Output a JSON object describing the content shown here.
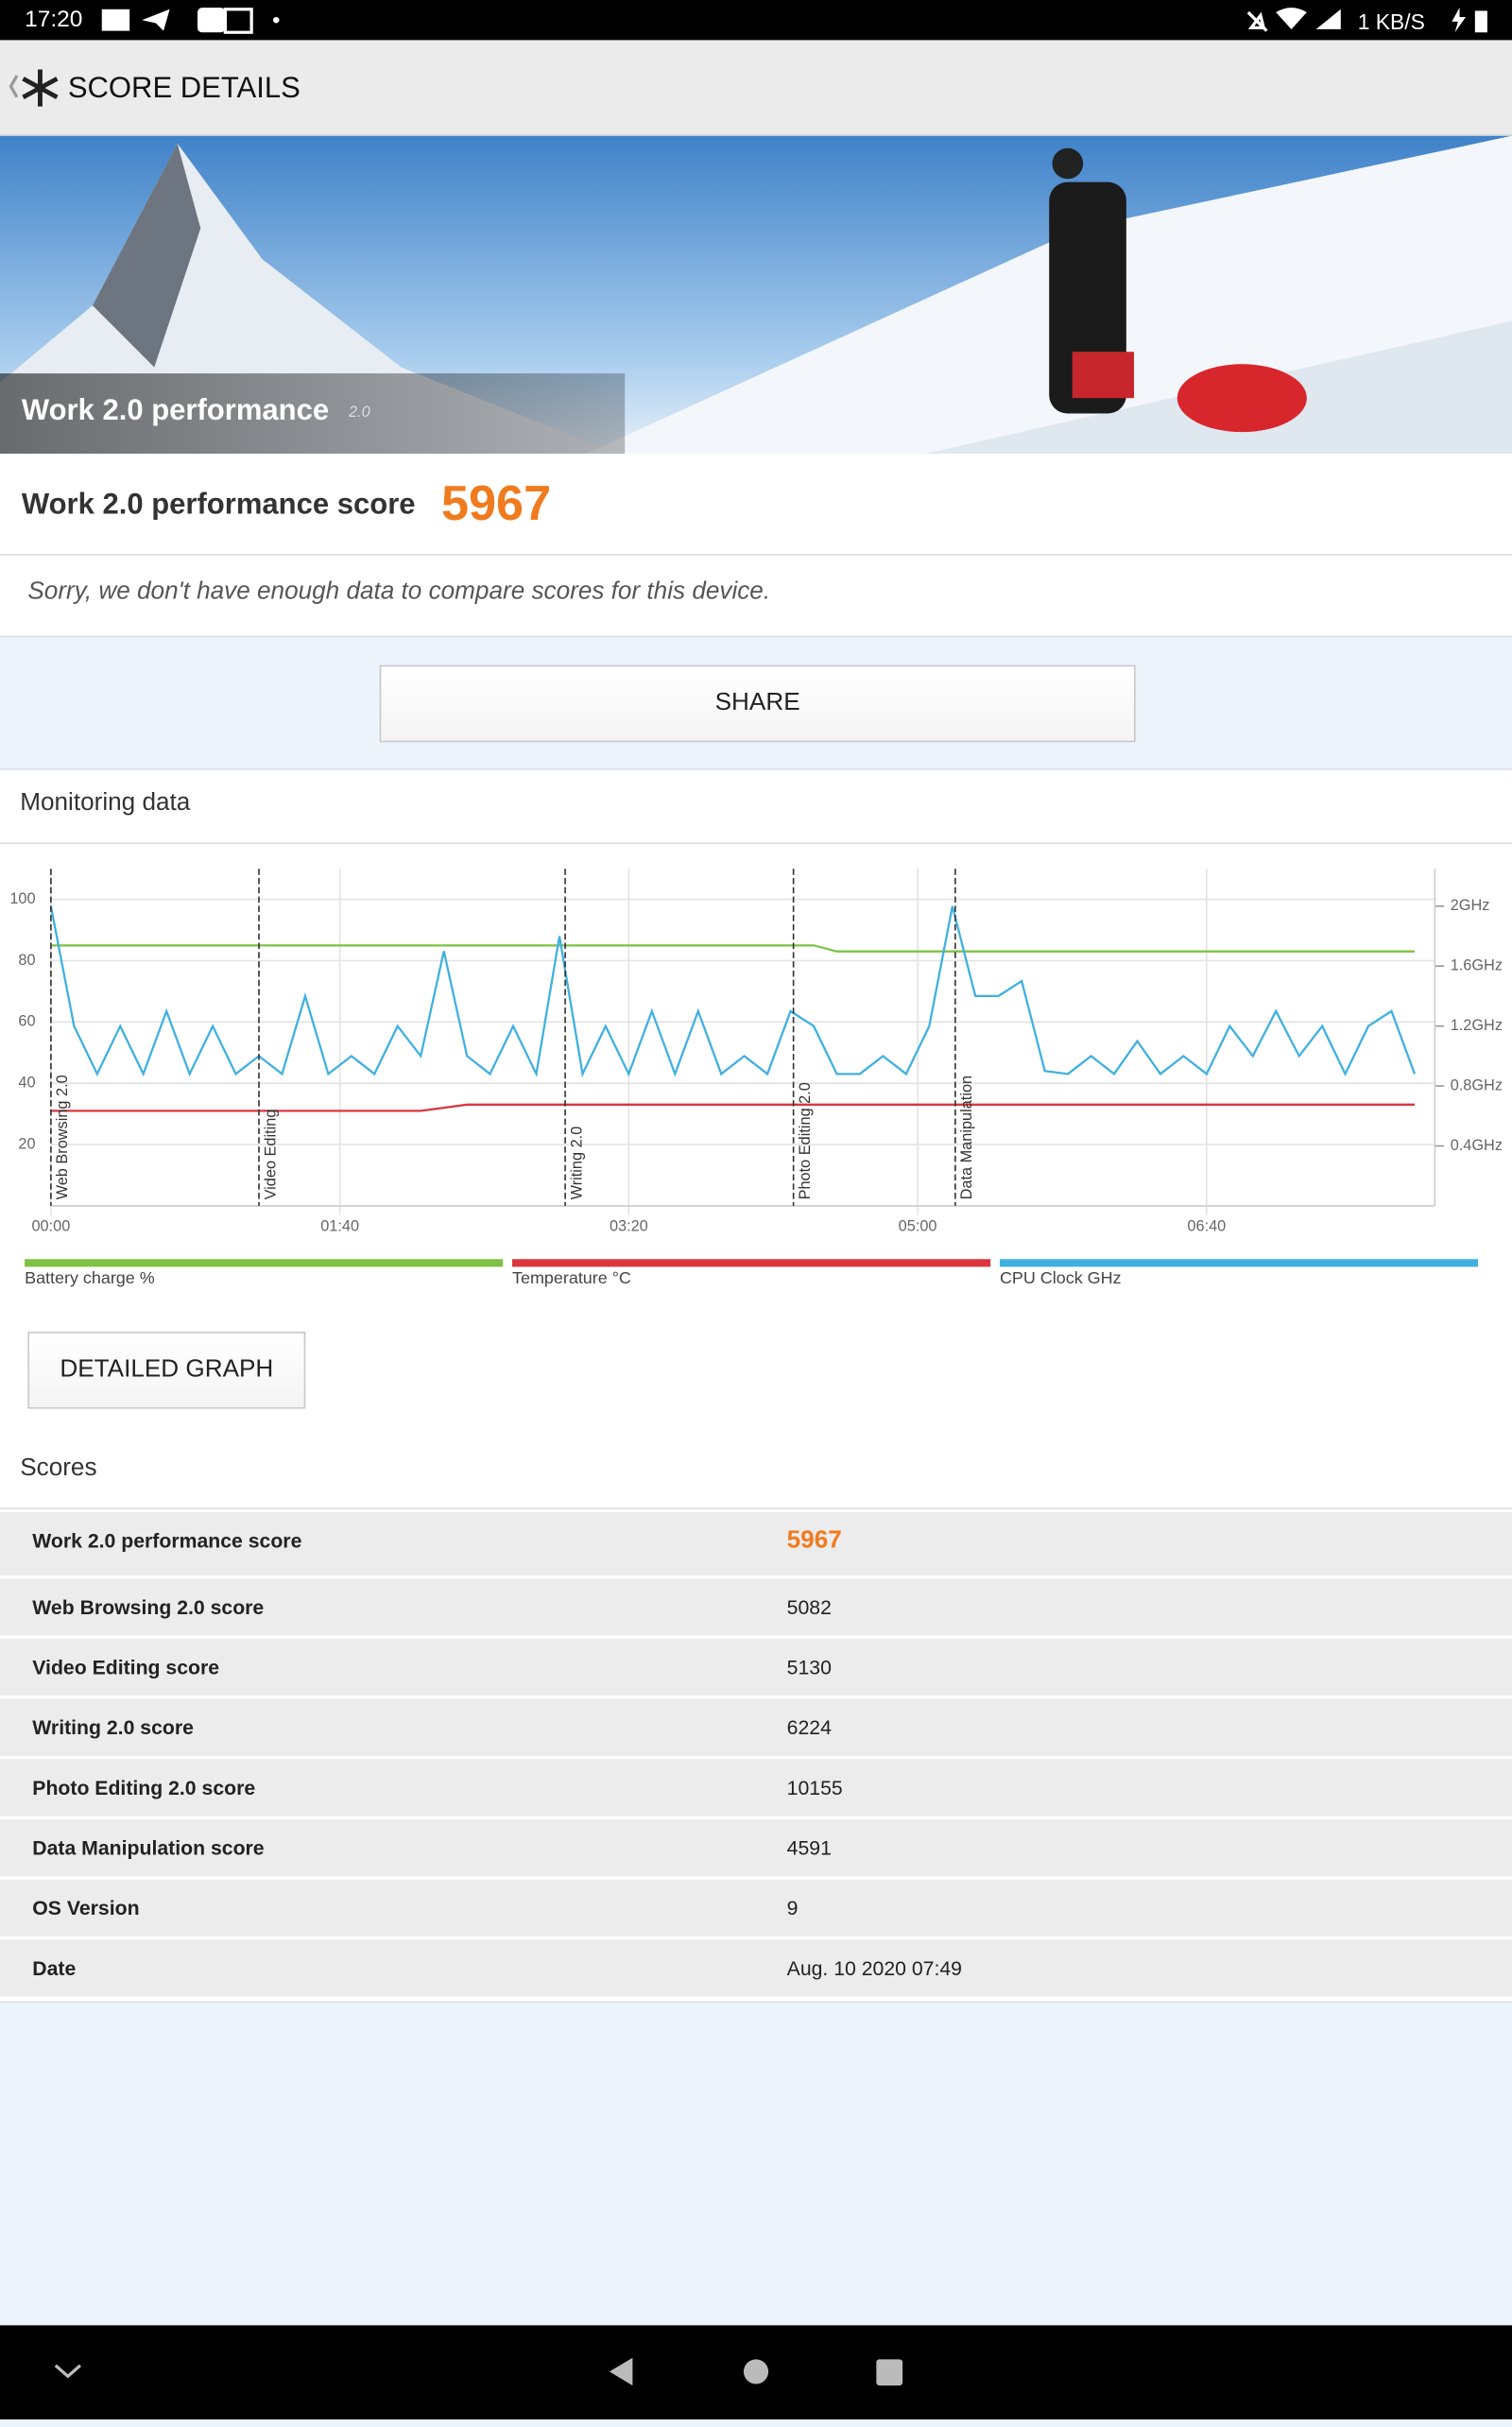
{
  "status_bar": {
    "time": "17:20",
    "speed": "1 KB/S"
  },
  "header": {
    "title": "SCORE DETAILS"
  },
  "banner": {
    "title": "Work 2.0 performance",
    "version": "2.0"
  },
  "score": {
    "label": "Work 2.0 performance score",
    "value": 5967,
    "note": "Sorry, we don't have enough data to compare scores for this device."
  },
  "share_button": "SHARE",
  "monitoring": {
    "title": "Monitoring data",
    "button": "DETAILED GRAPH"
  },
  "chart_data": {
    "type": "line",
    "x": [
      0,
      8,
      16,
      24,
      32,
      40,
      48,
      56,
      64,
      72,
      80,
      88,
      96,
      104,
      112,
      120,
      128,
      136,
      144,
      152,
      160,
      168,
      176,
      184,
      192,
      200,
      208,
      216,
      224,
      232,
      240,
      248,
      256,
      264,
      272,
      280,
      288,
      296,
      304,
      312,
      320,
      328,
      336,
      344,
      352,
      360,
      368,
      376,
      384,
      392,
      400,
      408,
      416,
      424,
      432,
      440,
      448,
      456,
      464,
      472
    ],
    "xlim": [
      0,
      479
    ],
    "xticks": [
      {
        "value": 0,
        "label": "00:00"
      },
      {
        "value": 100,
        "label": "01:40"
      },
      {
        "value": 200,
        "label": "03:20"
      },
      {
        "value": 300,
        "label": "05:00"
      },
      {
        "value": 400,
        "label": "06:40"
      }
    ],
    "ylim": [
      0,
      110
    ],
    "yticks": [
      20,
      40,
      60,
      80,
      100
    ],
    "y2lim": [
      0,
      2.25
    ],
    "y2ticks": [
      {
        "value": 0.4,
        "label": "0.4GHz"
      },
      {
        "value": 0.8,
        "label": "0.8GHz"
      },
      {
        "value": 1.2,
        "label": "1.2GHz"
      },
      {
        "value": 1.6,
        "label": "1.6GHz"
      },
      {
        "value": 2,
        "label": "2GHz"
      }
    ],
    "grid": true,
    "markers": [
      {
        "x": 0,
        "label": "Web Browsing 2.0"
      },
      {
        "x": 72,
        "label": "Video Editing"
      },
      {
        "x": 178,
        "label": "Writing 2.0"
      },
      {
        "x": 257,
        "label": "Photo Editing 2.0"
      },
      {
        "x": 313,
        "label": "Data Manipulation"
      }
    ],
    "series": [
      {
        "name": "Battery charge %",
        "color": "#7dc242",
        "values": [
          85,
          85,
          85,
          85,
          85,
          85,
          85,
          85,
          85,
          85,
          85,
          85,
          85,
          85,
          85,
          85,
          85,
          85,
          85,
          85,
          85,
          85,
          85,
          85,
          85,
          85,
          85,
          85,
          85,
          85,
          85,
          85,
          85,
          85,
          83,
          83,
          83,
          83,
          83,
          83,
          83,
          83,
          83,
          83,
          83,
          83,
          83,
          83,
          83,
          83,
          83,
          83,
          83,
          83,
          83,
          83,
          83,
          83,
          83,
          83
        ]
      },
      {
        "name": "Temperature °C",
        "color": "#d9363e",
        "values": [
          31,
          31,
          31,
          31,
          31,
          31,
          31,
          31,
          31,
          31,
          31,
          31,
          31,
          31,
          31,
          31,
          31,
          32,
          33,
          33,
          33,
          33,
          33,
          33,
          33,
          33,
          33,
          33,
          33,
          33,
          33,
          33,
          33,
          33,
          33,
          33,
          33,
          33,
          33,
          33,
          33,
          33,
          33,
          33,
          33,
          33,
          33,
          33,
          33,
          33,
          33,
          33,
          33,
          33,
          33,
          33,
          33,
          33,
          33,
          33
        ]
      },
      {
        "name": "CPU Clock GHz",
        "color": "#3fb0e0",
        "axis": "y2",
        "values": [
          2.0,
          1.2,
          0.88,
          1.2,
          0.88,
          1.3,
          0.88,
          1.2,
          0.88,
          1.0,
          0.88,
          1.4,
          0.88,
          1.0,
          0.88,
          1.2,
          1.0,
          1.7,
          1.0,
          0.88,
          1.2,
          0.88,
          1.8,
          0.88,
          1.2,
          0.88,
          1.3,
          0.88,
          1.3,
          0.88,
          1.0,
          0.88,
          1.3,
          1.2,
          0.88,
          0.88,
          1.0,
          0.88,
          1.2,
          2.0,
          1.4,
          1.4,
          1.5,
          0.9,
          0.88,
          1.0,
          0.88,
          1.1,
          0.88,
          1.0,
          0.88,
          1.2,
          1.0,
          1.3,
          1.0,
          1.2,
          0.88,
          1.2,
          1.3,
          0.88
        ]
      }
    ]
  },
  "scores": {
    "title": "Scores",
    "rows": [
      [
        "Work 2.0 performance score",
        5967
      ],
      [
        "Web Browsing 2.0 score",
        5082
      ],
      [
        "Video Editing score",
        5130
      ],
      [
        "Writing 2.0 score",
        6224
      ],
      [
        "Photo Editing 2.0 score",
        10155
      ],
      [
        "Data Manipulation score",
        4591
      ],
      [
        "OS Version",
        9
      ],
      [
        "Date",
        "Aug. 10 2020 07:49"
      ]
    ]
  }
}
